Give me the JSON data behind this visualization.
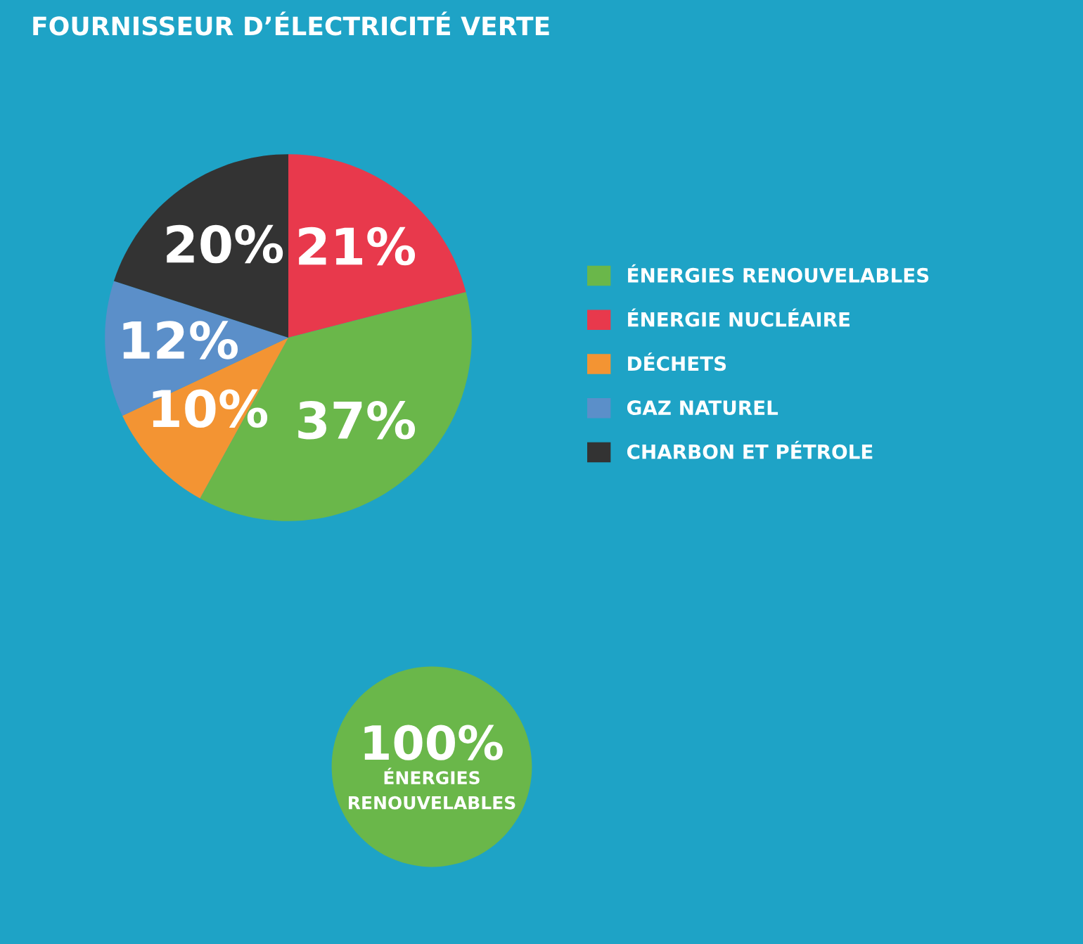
{
  "chart_data": [
    {
      "type": "pie",
      "title": "FOURNISSEUR D’ÉLECTRICITÉ VERTE",
      "categories": [
        "ÉNERGIE NUCLÉAIRE",
        "ÉNERGIES RENOUVELABLES",
        "DÉCHETS",
        "GAZ NATUREL",
        "CHARBON ET PÉTROLE"
      ],
      "values": [
        21,
        37,
        10,
        12,
        20
      ],
      "colors": [
        "#e8394c",
        "#6ab74a",
        "#f39433",
        "#5b8fc9",
        "#333333"
      ],
      "value_labels": [
        "21%",
        "37%",
        "10%",
        "12%",
        "20%"
      ],
      "legend": "right"
    },
    {
      "type": "pie",
      "categories": [
        "ÉNERGIES RENOUVELABLES"
      ],
      "values": [
        100
      ],
      "colors": [
        "#6ab74a"
      ],
      "value_labels": [
        "100%"
      ]
    }
  ]
}
